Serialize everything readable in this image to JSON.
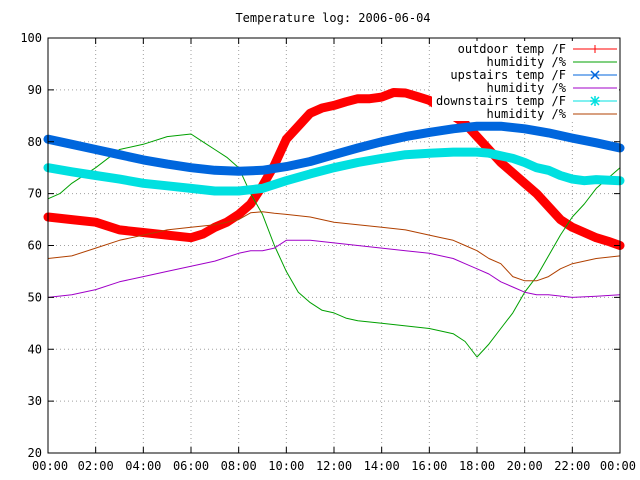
{
  "chart_data": {
    "type": "line",
    "title": "Temperature log: 2006-06-04",
    "xlabel": "",
    "ylabel": "",
    "xlim": [
      0,
      24
    ],
    "ylim": [
      20,
      100
    ],
    "x_ticks": [
      "00:00",
      "02:00",
      "04:00",
      "06:00",
      "08:00",
      "10:00",
      "12:00",
      "14:00",
      "16:00",
      "18:00",
      "20:00",
      "22:00",
      "00:00"
    ],
    "y_ticks": [
      "20",
      "30",
      "40",
      "50",
      "60",
      "70",
      "80",
      "90",
      "100"
    ],
    "grid": true,
    "legend_position": "top-right",
    "series": [
      {
        "name": "outdoor temp /F",
        "color": "#ff0000",
        "marker": "plus",
        "x": [
          0,
          1,
          2,
          3,
          4,
          5,
          6,
          6.5,
          7,
          7.5,
          8,
          8.5,
          9,
          9.5,
          10,
          10.5,
          11,
          11.5,
          12,
          12.5,
          13,
          13.5,
          14,
          14.5,
          15,
          15.5,
          16,
          16.5,
          17,
          17.5,
          18,
          18.5,
          19,
          19.5,
          20,
          20.5,
          21,
          21.5,
          22,
          22.5,
          23,
          23.5,
          24
        ],
        "values": [
          65.5,
          65,
          64.5,
          63,
          62.5,
          62,
          61.5,
          62.2,
          63.5,
          64.5,
          66,
          68,
          71.5,
          75.5,
          80.5,
          83,
          85.5,
          86.5,
          87,
          87.7,
          88.3,
          88.3,
          88.6,
          89.5,
          89.4,
          88.7,
          88,
          86.5,
          85,
          83.5,
          81,
          78.5,
          76,
          74,
          72,
          70,
          67.5,
          65,
          63.5,
          62.5,
          61.5,
          60.8,
          60
        ]
      },
      {
        "name": "humidity /%",
        "color": "#00a000",
        "marker": "none",
        "x": [
          0,
          0.5,
          1,
          2,
          3,
          4,
          5,
          6,
          6.5,
          7,
          7.5,
          8,
          8.5,
          9,
          9.5,
          10,
          10.5,
          11,
          11.5,
          12,
          12.5,
          13,
          14,
          15,
          16,
          16.5,
          17,
          17.5,
          18,
          18.5,
          19,
          19.5,
          20,
          20.5,
          21,
          21.5,
          22,
          22.5,
          23,
          23.5,
          24
        ],
        "values": [
          69,
          70,
          72,
          75,
          78.5,
          79.5,
          81,
          81.5,
          80,
          78.5,
          77,
          75,
          70,
          66,
          60,
          55,
          51,
          49,
          47.5,
          47,
          46,
          45.5,
          45,
          44.5,
          44,
          43.5,
          43,
          41.5,
          38.5,
          41,
          44,
          47,
          51,
          54,
          58,
          62,
          65.5,
          68,
          71,
          73,
          75
        ]
      },
      {
        "name": "upstairs temp /F",
        "color": "#0066dd",
        "marker": "x",
        "x": [
          0,
          1,
          2,
          3,
          4,
          5,
          6,
          7,
          8,
          9,
          10,
          11,
          12,
          13,
          14,
          15,
          16,
          17,
          18,
          19,
          20,
          21,
          22,
          23,
          24
        ],
        "values": [
          80.5,
          79.5,
          78.5,
          77.5,
          76.5,
          75.7,
          75,
          74.5,
          74.3,
          74.5,
          75.2,
          76.2,
          77.5,
          78.8,
          80,
          81,
          81.8,
          82.5,
          83,
          83,
          82.5,
          81.7,
          80.7,
          79.8,
          78.8
        ]
      },
      {
        "name": "humidity /%",
        "color": "#a000c8",
        "marker": "none",
        "x": [
          0,
          1,
          2,
          3,
          4,
          5,
          6,
          7,
          8,
          8.5,
          9,
          9.5,
          10,
          11,
          12,
          13,
          14,
          15,
          16,
          17,
          17.5,
          18,
          18.5,
          19,
          19.5,
          20,
          20.5,
          21,
          22,
          23,
          24
        ],
        "values": [
          50,
          50.5,
          51.5,
          53,
          54,
          55,
          56,
          57,
          58.5,
          59,
          59,
          59.5,
          61,
          61,
          60.5,
          60,
          59.5,
          59,
          58.5,
          57.5,
          56.5,
          55.5,
          54.5,
          53,
          52,
          51,
          50.5,
          50.5,
          50,
          50.2,
          50.5
        ]
      },
      {
        "name": "downstairs temp /F",
        "color": "#00e0e0",
        "marker": "star",
        "x": [
          0,
          1,
          2,
          3,
          4,
          5,
          6,
          7,
          8,
          9,
          10,
          11,
          12,
          13,
          14,
          15,
          16,
          17,
          18,
          18.5,
          19,
          19.5,
          20,
          20.5,
          21,
          21.5,
          22,
          22.5,
          23,
          24
        ],
        "values": [
          75,
          74.2,
          73.5,
          72.8,
          72,
          71.5,
          71,
          70.5,
          70.5,
          71,
          72.5,
          73.8,
          75,
          76,
          76.8,
          77.5,
          77.8,
          78,
          78,
          77.8,
          77.3,
          76.8,
          76,
          75,
          74.5,
          73.5,
          72.8,
          72.5,
          72.7,
          72.5
        ]
      },
      {
        "name": "humidity /%",
        "color": "#b04000",
        "marker": "none",
        "x": [
          0,
          1,
          2,
          3,
          4,
          5,
          6,
          7,
          8,
          8.5,
          9,
          9.5,
          10,
          11,
          12,
          13,
          14,
          15,
          16,
          16.5,
          17,
          17.5,
          18,
          18.5,
          19,
          19.5,
          20,
          20.5,
          21,
          21.5,
          22,
          23,
          24
        ],
        "values": [
          57.5,
          58,
          59.5,
          61,
          62,
          63,
          63.5,
          64,
          65,
          66.3,
          66.5,
          66.2,
          66,
          65.5,
          64.5,
          64,
          63.5,
          63,
          62,
          61.5,
          61,
          60,
          59,
          57.5,
          56.5,
          54,
          53.2,
          53.2,
          54,
          55.5,
          56.5,
          57.5,
          58
        ]
      }
    ]
  }
}
